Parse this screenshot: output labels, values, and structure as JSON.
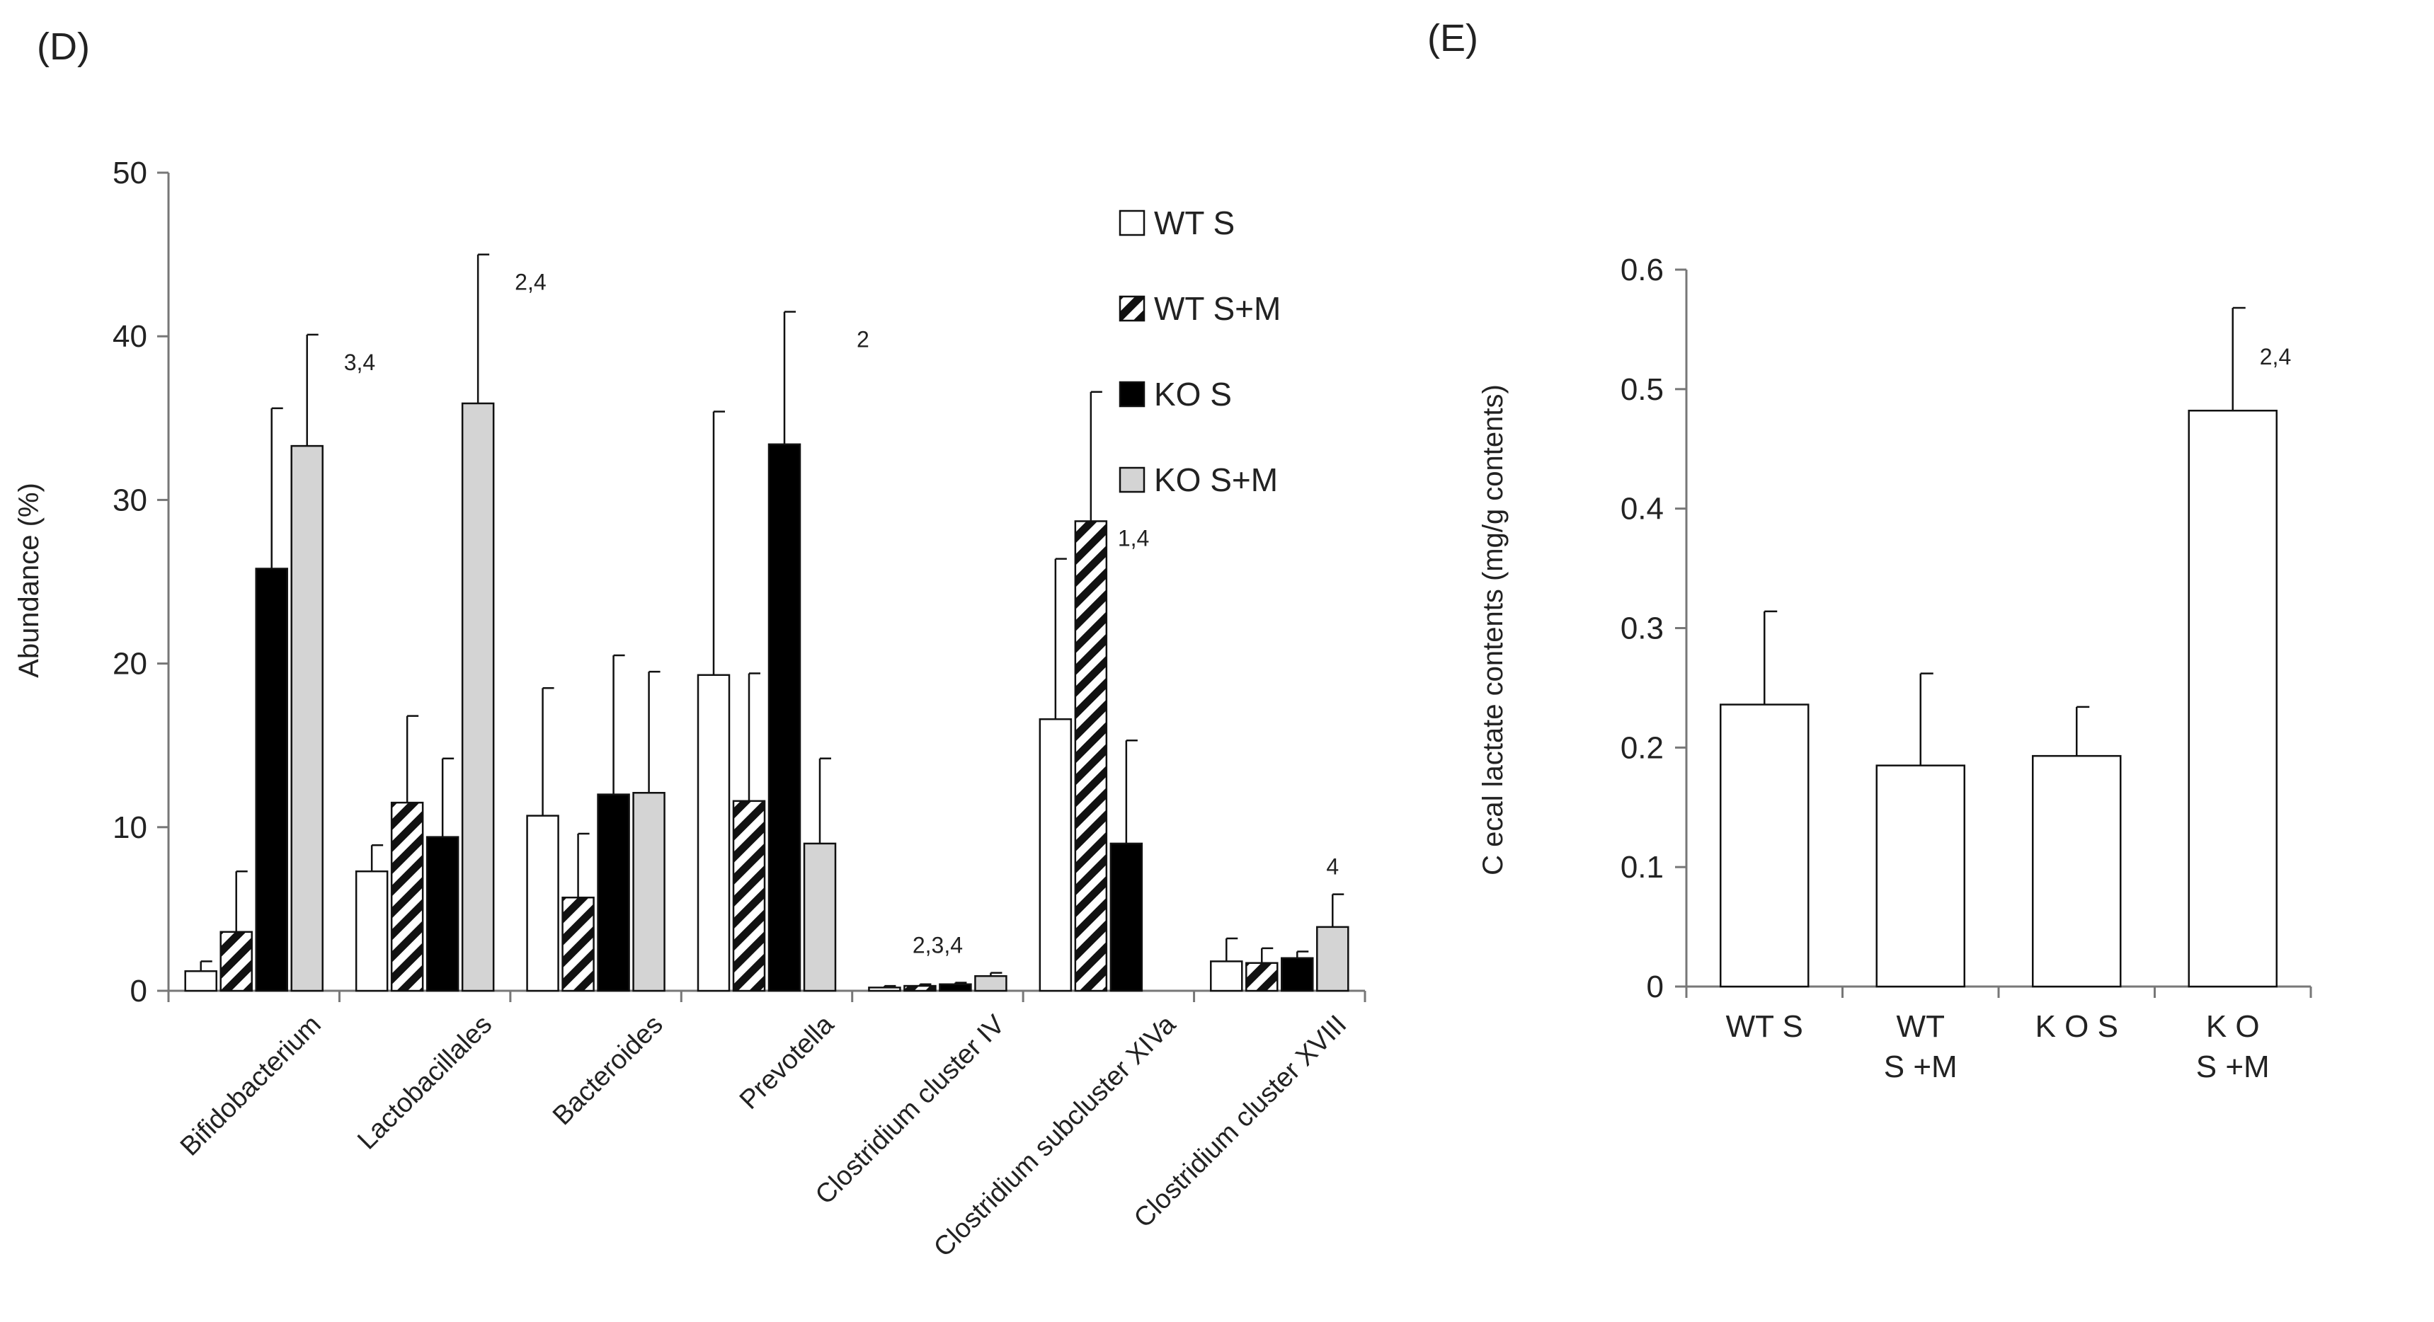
{
  "chart_data": [
    {
      "panel_label": "(D)",
      "type": "bar",
      "ylabel": "Abundance (%)",
      "ylim": [
        0,
        50
      ],
      "yticks": [
        0,
        10,
        20,
        30,
        40,
        50
      ],
      "categories": [
        "Bifidobacterium",
        "Lactobacillales",
        "Bacteroides",
        "Prevotella",
        "Clostridium cluster IV",
        "Clostridium subcluster XIVa",
        "Clostridium cluster XVIII"
      ],
      "series": [
        {
          "name": "WT S",
          "fill": "white",
          "values": [
            1.2,
            7.3,
            10.7,
            19.3,
            0.2,
            16.6,
            1.8
          ],
          "errors": [
            0.6,
            1.6,
            7.8,
            16.1,
            0.1,
            9.8,
            1.4
          ]
        },
        {
          "name": "WT S+M",
          "fill": "hatch",
          "values": [
            3.6,
            11.5,
            5.7,
            11.6,
            0.3,
            28.7,
            1.7
          ],
          "errors": [
            3.7,
            5.3,
            3.9,
            7.8,
            0.1,
            7.9,
            0.9
          ]
        },
        {
          "name": "KO S",
          "fill": "black",
          "values": [
            25.8,
            9.4,
            12.0,
            33.4,
            0.4,
            9.0,
            2.0
          ],
          "errors": [
            9.8,
            4.8,
            8.5,
            8.1,
            0.1,
            6.3,
            0.4
          ]
        },
        {
          "name": "KO S+M",
          "fill": "gray",
          "values": [
            33.3,
            35.9,
            12.1,
            9.0,
            0.9,
            null,
            3.9
          ],
          "errors": [
            6.8,
            9.1,
            7.4,
            5.2,
            0.2,
            null,
            2.0
          ]
        }
      ],
      "annotations": [
        {
          "category": "Bifidobacterium",
          "text": "3,4"
        },
        {
          "category": "Lactobacillales",
          "text": "2,4"
        },
        {
          "category": "Prevotella",
          "text": "2"
        },
        {
          "category": "Clostridium cluster IV",
          "text": "2,3,4"
        },
        {
          "category": "Clostridium subcluster XIVa",
          "text": "1,4"
        },
        {
          "category": "Clostridium cluster XVIII",
          "text": "4"
        }
      ],
      "legend": [
        "WT S",
        "WT S+M",
        "KO S",
        "KO S+M"
      ],
      "legend_position": "top-right"
    },
    {
      "panel_label": "(E)",
      "type": "bar",
      "ylabel": "C ecal lactate contents  (mg/g contents)",
      "ylim": [
        0,
        0.6
      ],
      "yticks": [
        "0",
        "0.1",
        "0.2",
        "0.3",
        "0.4",
        "0.5",
        "0.6"
      ],
      "categories": [
        [
          "WT   S"
        ],
        [
          "WT",
          "S +M"
        ],
        [
          "K O   S"
        ],
        [
          "K O",
          "S +M"
        ]
      ],
      "values": [
        0.236,
        0.185,
        0.193,
        0.482
      ],
      "errors": [
        0.078,
        0.077,
        0.041,
        0.086
      ],
      "annotations": [
        {
          "index": 3,
          "text": "2,4"
        }
      ]
    }
  ]
}
